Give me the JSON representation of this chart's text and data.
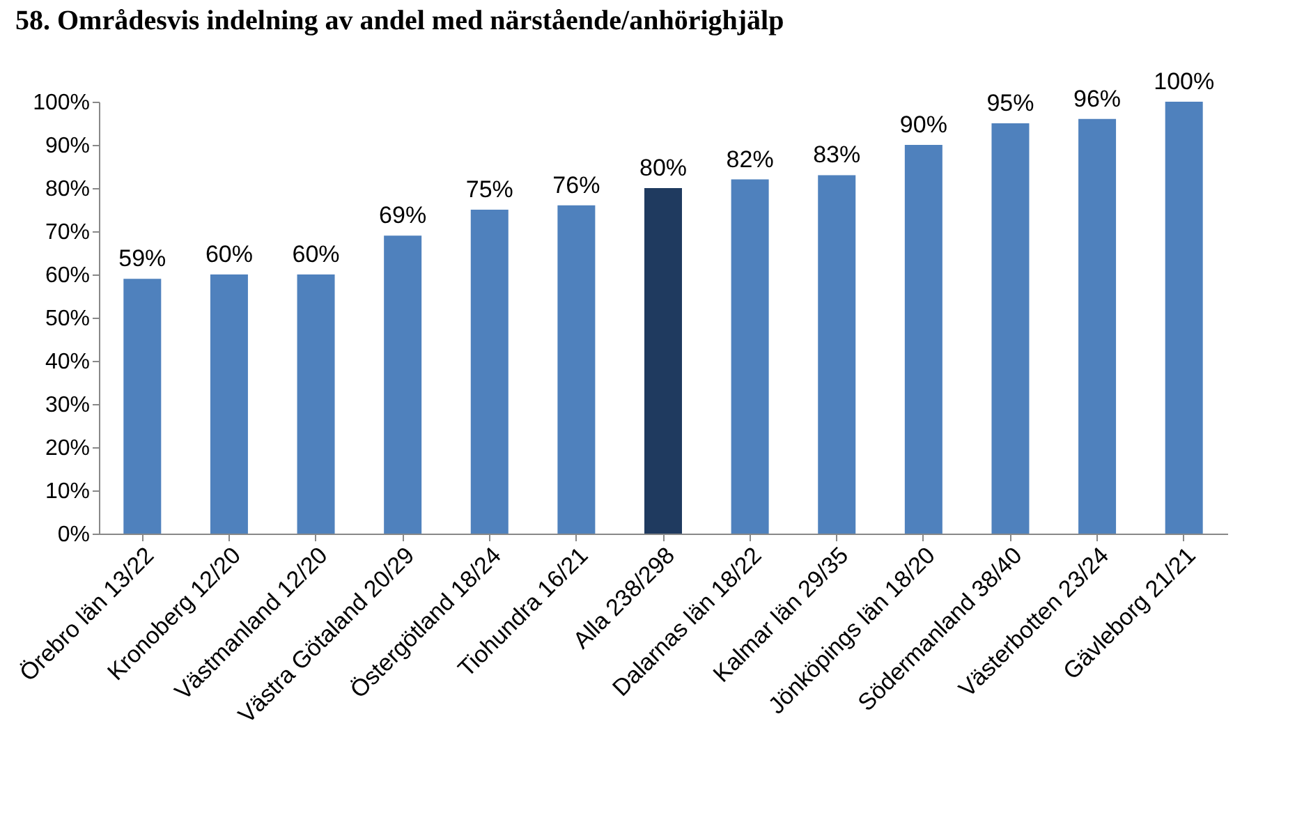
{
  "chart_data": {
    "type": "bar",
    "title": "58. Områdesvis indelning av andel med närstående/anhörighjälp",
    "categories": [
      "Örebro län 13/22",
      "Kronoberg 12/20",
      "Västmanland 12/20",
      "Västra Götaland 20/29",
      "Östergötland 18/24",
      "Tiohundra 16/21",
      "Alla 238/298",
      "Dalarnas län 18/22",
      "Kalmar län 29/35",
      "Jönköpings län 18/20",
      "Södermanland 38/40",
      "Västerbotten 23/24",
      "Gävleborg 21/21"
    ],
    "values": [
      59,
      60,
      60,
      69,
      75,
      76,
      80,
      82,
      83,
      90,
      95,
      96,
      100
    ],
    "colors": [
      "#4f81bd",
      "#4f81bd",
      "#4f81bd",
      "#4f81bd",
      "#4f81bd",
      "#4f81bd",
      "#1f3a5f",
      "#4f81bd",
      "#4f81bd",
      "#4f81bd",
      "#4f81bd",
      "#4f81bd",
      "#4f81bd"
    ],
    "value_labels": [
      "59%",
      "60%",
      "60%",
      "69%",
      "75%",
      "76%",
      "80%",
      "82%",
      "83%",
      "90%",
      "95%",
      "96%",
      "100%"
    ],
    "ylim": [
      0,
      100
    ],
    "yticks": [
      {
        "value": 0,
        "label": "0%"
      },
      {
        "value": 10,
        "label": "10%"
      },
      {
        "value": 20,
        "label": "20%"
      },
      {
        "value": 30,
        "label": "30%"
      },
      {
        "value": 40,
        "label": "40%"
      },
      {
        "value": 50,
        "label": "50%"
      },
      {
        "value": 60,
        "label": "60%"
      },
      {
        "value": 70,
        "label": "70%"
      },
      {
        "value": 80,
        "label": "80%"
      },
      {
        "value": 90,
        "label": "90%"
      },
      {
        "value": 100,
        "label": "100%"
      }
    ],
    "grid": false,
    "legend": false
  }
}
